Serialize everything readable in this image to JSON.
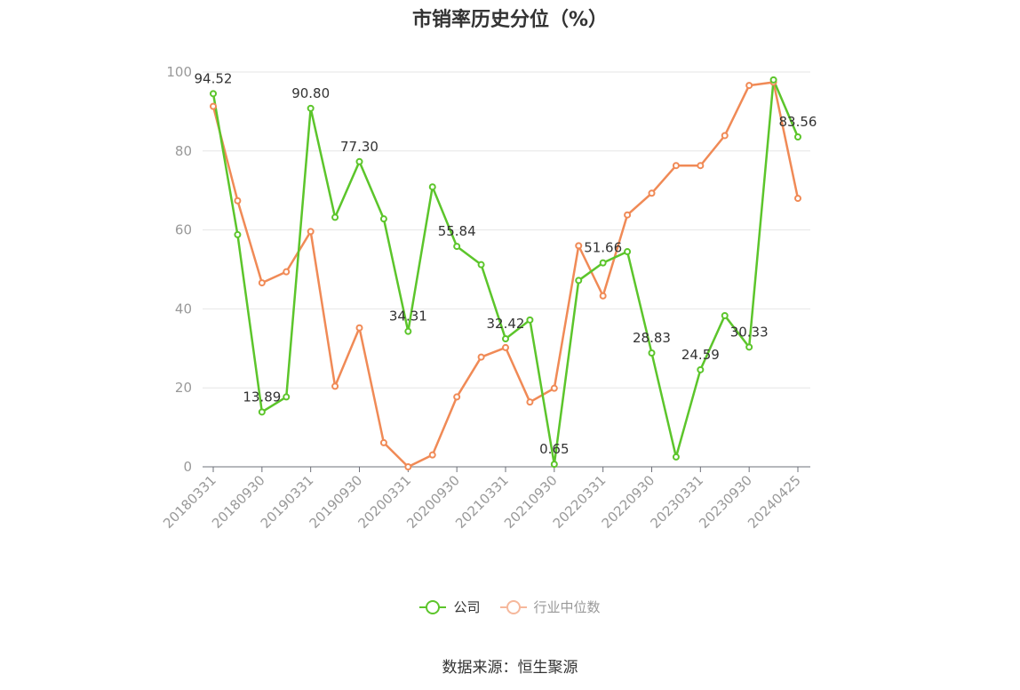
{
  "title": "市销率历史分位（%）",
  "source": "数据来源：恒生聚源",
  "colors": {
    "company": "#5cc52b",
    "industry": "#f08a56",
    "industry_legend": "#f6b89c",
    "grid": "#e6e6e6",
    "axis": "#999999"
  },
  "chart_data": {
    "type": "line",
    "title": "市销率历史分位（%）",
    "xlabel": "",
    "ylabel": "",
    "ylim": [
      0,
      100
    ],
    "yticks": [
      0,
      20,
      40,
      60,
      80,
      100
    ],
    "grid": true,
    "legend_position": "bottom-center",
    "x": [
      "20180331",
      "20180630",
      "20180930",
      "20181231",
      "20190331",
      "20190630",
      "20190930",
      "20191231",
      "20200331",
      "20200630",
      "20200930",
      "20201231",
      "20210331",
      "20210630",
      "20210930",
      "20211231",
      "20220331",
      "20220630",
      "20220930",
      "20221231",
      "20230331",
      "20230630",
      "20230930",
      "20231231",
      "20240425"
    ],
    "x_tick_labels": [
      "20180331",
      "20180930",
      "20190331",
      "20190930",
      "20200331",
      "20200930",
      "20210331",
      "20210930",
      "20220331",
      "20220930",
      "20230331",
      "20230930",
      "20240425"
    ],
    "series": [
      {
        "name": "公司",
        "values": [
          94.52,
          58.8,
          13.89,
          17.7,
          90.8,
          63.2,
          77.3,
          62.8,
          34.31,
          70.9,
          55.84,
          51.2,
          32.42,
          37.2,
          0.65,
          47.2,
          51.66,
          54.5,
          28.83,
          2.5,
          24.59,
          38.3,
          30.33,
          98.0,
          83.56
        ],
        "labels": [
          "94.52",
          "",
          "13.89",
          "",
          "90.80",
          "",
          "77.30",
          "",
          "34.31",
          "",
          "55.84",
          "",
          "32.42",
          "",
          "0.65",
          "",
          "51.66",
          "",
          "28.83",
          "",
          "24.59",
          "",
          "30.33",
          "",
          "83.56"
        ]
      },
      {
        "name": "行业中位数",
        "values": [
          91.3,
          67.4,
          46.6,
          49.4,
          59.6,
          20.4,
          35.2,
          6.1,
          0.0,
          3.0,
          17.7,
          27.8,
          30.2,
          16.4,
          19.9,
          56.0,
          43.3,
          63.8,
          69.3,
          76.3,
          76.3,
          83.9,
          96.6,
          97.4,
          68.0
        ]
      }
    ]
  }
}
